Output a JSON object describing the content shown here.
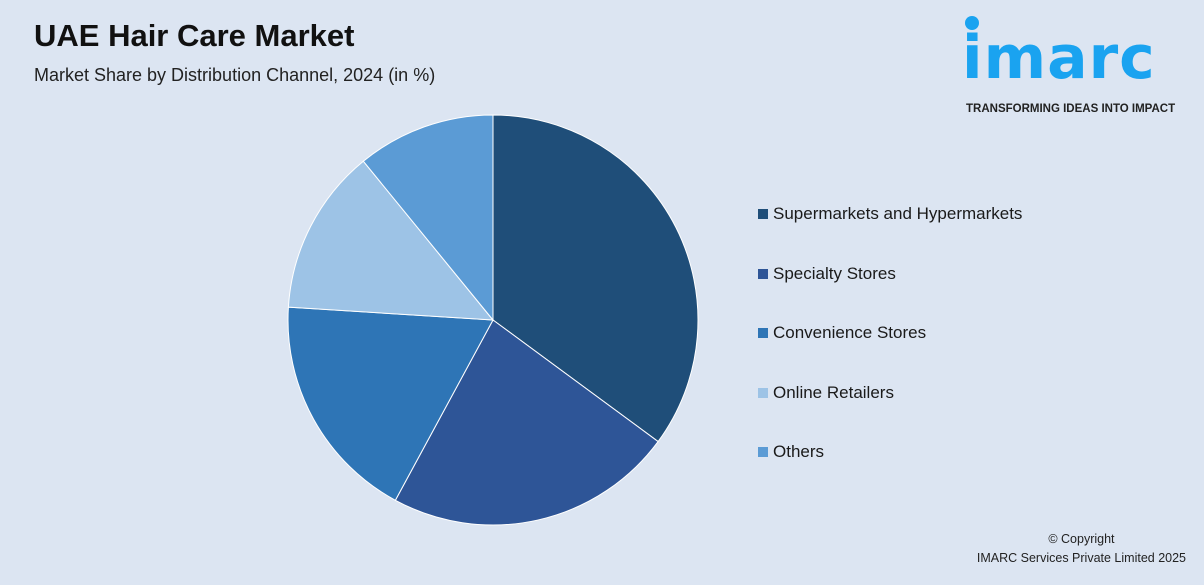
{
  "header": {
    "title": "UAE Hair Care Market",
    "subtitle": "Market Share by Distribution Channel, 2024 (in %)"
  },
  "logo": {
    "text": "imarc",
    "tagline": "TRANSFORMING IDEAS INTO IMPACT",
    "color": "#1aa3f0"
  },
  "chart_data": {
    "type": "pie",
    "title": "UAE Hair Care Market",
    "subtitle": "Market Share by Distribution Channel, 2024 (in %)",
    "legend_position": "right",
    "start_angle": "12 o'clock, clockwise",
    "categories": [
      "Supermarkets and Hypermarkets",
      "Specialty Stores",
      "Convenience Stores",
      "Online Retailers",
      "Others"
    ],
    "values": [
      35.1,
      22.8,
      18.1,
      13.1,
      10.9
    ],
    "colors": [
      "#1f4e79",
      "#2e5597",
      "#2e75b6",
      "#9dc3e6",
      "#5b9bd5"
    ]
  },
  "footer": {
    "copyright": "© Copyright",
    "company": "IMARC Services Private Limited 2025"
  }
}
